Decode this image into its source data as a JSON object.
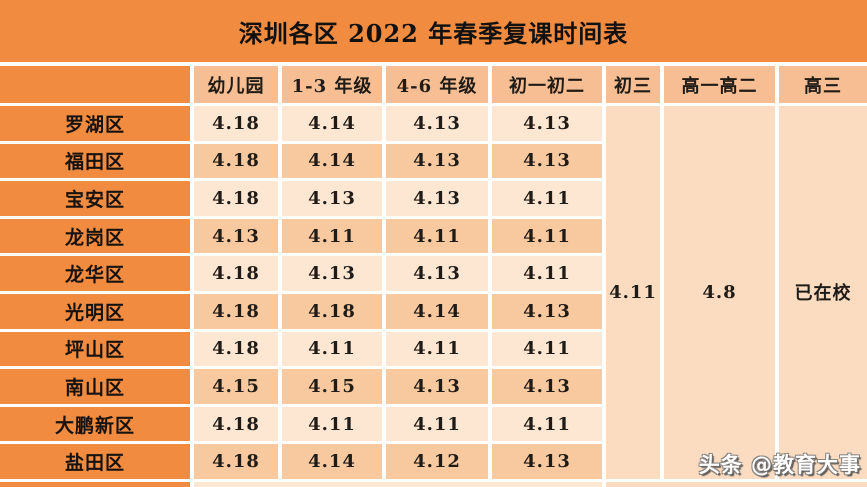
{
  "title": "深圳各区 2022 年春季复课时间表",
  "watermark": "头条 @教育大事",
  "colors": {
    "orange": "#F18B3F",
    "header_peach": "#F6BE92",
    "row_light": "#FDE6D2",
    "row_dark": "#F8C89E",
    "merged_peach": "#FBDCC1",
    "gap_white": "#FFFFFF",
    "text": "#1F1B17"
  },
  "table": {
    "columns": [
      "幼儿园",
      "1-3 年级",
      "4-6 年级",
      "初一初二",
      "初三",
      "高一高二",
      "高三"
    ],
    "rows": [
      {
        "district": "罗湖区",
        "values": [
          "4.18",
          "4.14",
          "4.13",
          "4.13"
        ]
      },
      {
        "district": "福田区",
        "values": [
          "4.18",
          "4.14",
          "4.13",
          "4.13"
        ]
      },
      {
        "district": "宝安区",
        "values": [
          "4.18",
          "4.13",
          "4.13",
          "4.11"
        ]
      },
      {
        "district": "龙岗区",
        "values": [
          "4.13",
          "4.11",
          "4.11",
          "4.11"
        ]
      },
      {
        "district": "龙华区",
        "values": [
          "4.18",
          "4.13",
          "4.13",
          "4.11"
        ]
      },
      {
        "district": "光明区",
        "values": [
          "4.18",
          "4.18",
          "4.14",
          "4.13"
        ]
      },
      {
        "district": "坪山区",
        "values": [
          "4.18",
          "4.11",
          "4.11",
          "4.11"
        ]
      },
      {
        "district": "南山区",
        "values": [
          "4.15",
          "4.15",
          "4.13",
          "4.13"
        ]
      },
      {
        "district": "大鹏新区",
        "values": [
          "4.18",
          "4.11",
          "4.11",
          "4.11"
        ]
      },
      {
        "district": "盐田区",
        "values": [
          "4.18",
          "4.14",
          "4.12",
          "4.13"
        ]
      }
    ],
    "merged": [
      {
        "column": "初三",
        "value": "4.11"
      },
      {
        "column": "高一高二",
        "value": "4.8"
      },
      {
        "column": "高三",
        "value": "已在校"
      }
    ]
  }
}
